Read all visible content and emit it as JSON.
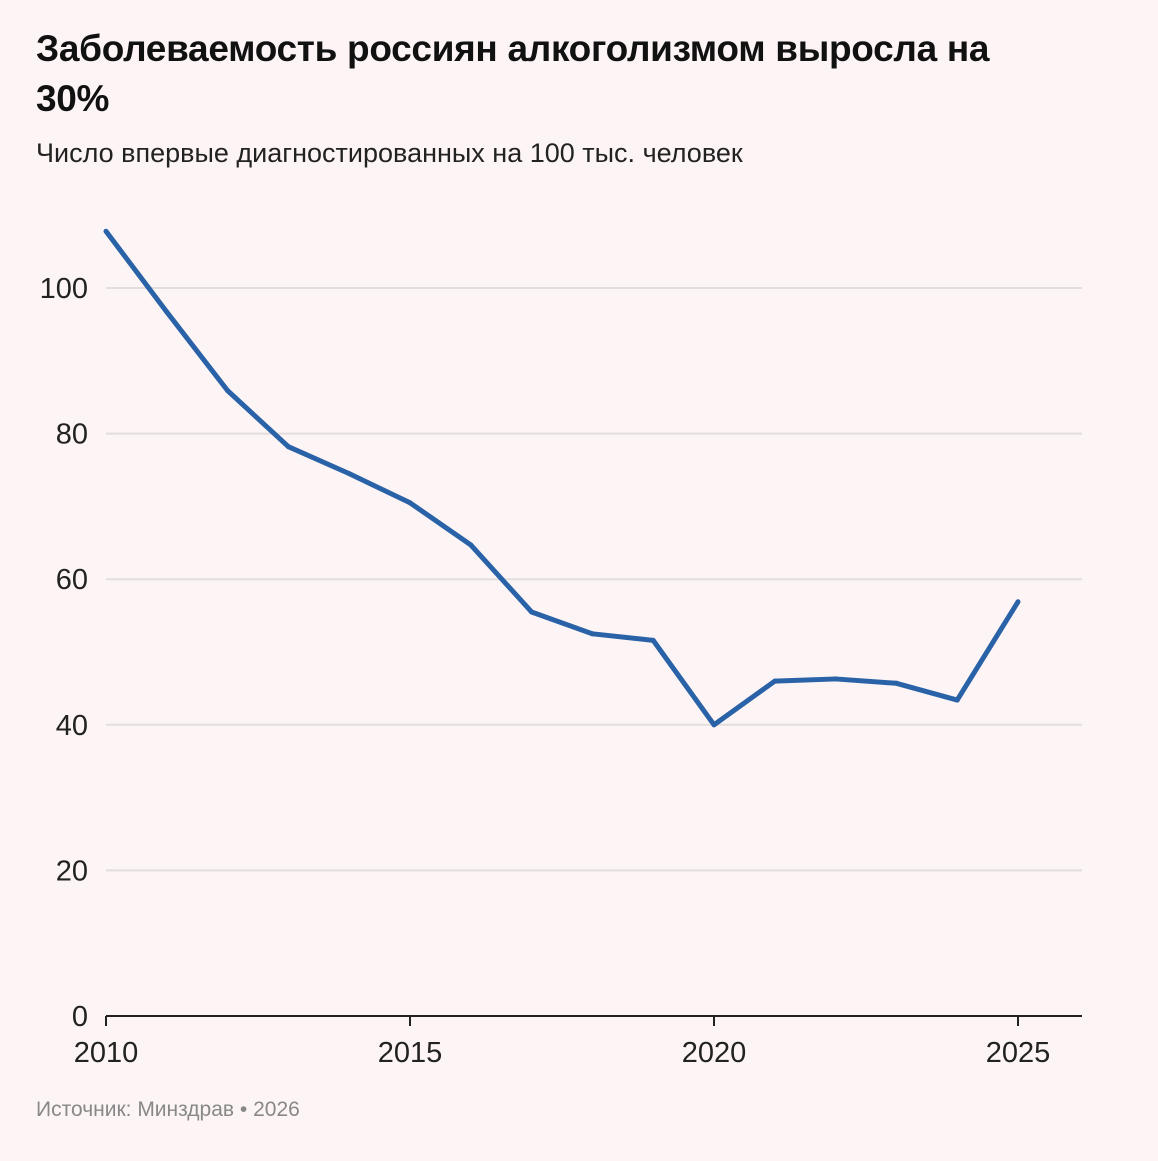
{
  "title": "Заболеваемость россиян алкоголизмом выросла на 30%",
  "subtitle": "Число впервые диагностированных на 100 тыс. человек",
  "source": "Источник: Минздрав • 2026",
  "colors": {
    "line": "#2a62a8",
    "grid": "#e3dede",
    "background": "#fdf5f5"
  },
  "chart_data": {
    "type": "line",
    "title": "Заболеваемость россиян алкоголизмом выросла на 30%",
    "xlabel": "",
    "ylabel": "",
    "x": [
      2010,
      2011,
      2012,
      2013,
      2014,
      2015,
      2016,
      2017,
      2018,
      2019,
      2020,
      2021,
      2022,
      2023,
      2024,
      2025
    ],
    "series": [
      {
        "name": "Число впервые диагностированных на 100 тыс. человек",
        "values": [
          107.8,
          96.7,
          85.9,
          78.2,
          74.5,
          70.5,
          64.7,
          55.5,
          52.5,
          51.6,
          40.0,
          46.0,
          46.3,
          45.7,
          43.4,
          56.9
        ]
      }
    ],
    "ylim": [
      0,
      110
    ],
    "xlim": [
      2010,
      2026
    ],
    "yticks": [
      0,
      20,
      40,
      60,
      80,
      100
    ],
    "xticks": [
      2010,
      2015,
      2020,
      2025
    ],
    "grid": true,
    "legend": "none"
  }
}
